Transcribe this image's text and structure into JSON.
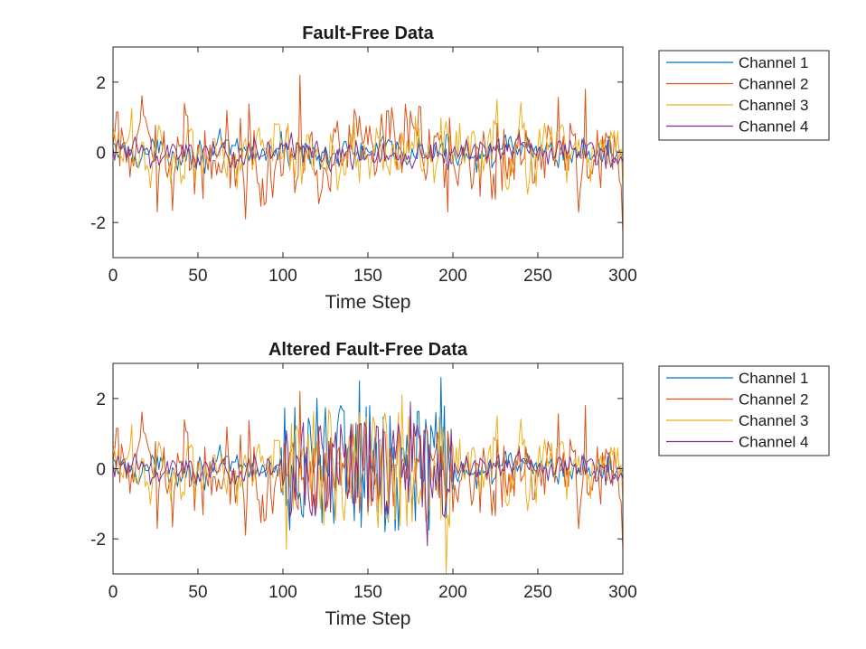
{
  "chart_data": [
    {
      "type": "line",
      "title": "Fault-Free Data",
      "xlabel": "Time Step",
      "ylabel": "",
      "xlim": [
        0,
        300
      ],
      "ylim": [
        -3,
        3
      ],
      "xticks": [
        0,
        50,
        100,
        150,
        200,
        250,
        300
      ],
      "yticks": [
        -2,
        0,
        2
      ],
      "legend": [
        "Channel 1",
        "Channel 2",
        "Channel 3",
        "Channel 4"
      ],
      "legend_location": "outside-top-right",
      "series": [
        {
          "name": "Channel 1",
          "color": "#0072BD",
          "noise": 0.2,
          "burst": 0,
          "spikes": [
            [
              290,
              0.2
            ]
          ]
        },
        {
          "name": "Channel 2",
          "color": "#D95319",
          "noise": 0.6,
          "burst": 0,
          "spikes": [
            [
              26,
              -1.7
            ],
            [
              110,
              2.2
            ],
            [
              197,
              -1.7
            ],
            [
              278,
              1.8
            ],
            [
              300,
              -2.3
            ]
          ]
        },
        {
          "name": "Channel 3",
          "color": "#EDB120",
          "noise": 0.45,
          "burst": 0,
          "spikes": []
        },
        {
          "name": "Channel 4",
          "color": "#7E2F8E",
          "noise": 0.22,
          "burst": 0,
          "spikes": []
        }
      ]
    },
    {
      "type": "line",
      "title": "Altered Fault-Free Data",
      "xlabel": "Time Step",
      "ylabel": "",
      "xlim": [
        0,
        300
      ],
      "ylim": [
        -3,
        3
      ],
      "xticks": [
        0,
        50,
        100,
        150,
        200,
        250,
        300
      ],
      "yticks": [
        -2,
        0,
        2
      ],
      "legend": [
        "Channel 1",
        "Channel 2",
        "Channel 3",
        "Channel 4"
      ],
      "legend_location": "outside-top-right",
      "altered_range": [
        100,
        200
      ],
      "series": [
        {
          "name": "Channel 1",
          "color": "#0072BD",
          "noise": 0.2,
          "burst": 1.3,
          "spikes": [
            [
              120,
              2.0
            ],
            [
              145,
              2.5
            ],
            [
              193,
              2.6
            ],
            [
              160,
              -1.8
            ]
          ]
        },
        {
          "name": "Channel 2",
          "color": "#D95319",
          "noise": 0.6,
          "burst": 0.9,
          "spikes": [
            [
              26,
              -1.7
            ],
            [
              110,
              2.2
            ],
            [
              278,
              1.8
            ],
            [
              300,
              -2.3
            ]
          ]
        },
        {
          "name": "Channel 3",
          "color": "#EDB120",
          "noise": 0.45,
          "burst": 1.2,
          "spikes": [
            [
              170,
              2.1
            ],
            [
              196,
              -3.0
            ],
            [
              102,
              -2.3
            ]
          ]
        },
        {
          "name": "Channel 4",
          "color": "#7E2F8E",
          "noise": 0.22,
          "burst": 1.0,
          "spikes": [
            [
              175,
              1.9
            ],
            [
              185,
              -2.2
            ]
          ]
        }
      ]
    }
  ]
}
